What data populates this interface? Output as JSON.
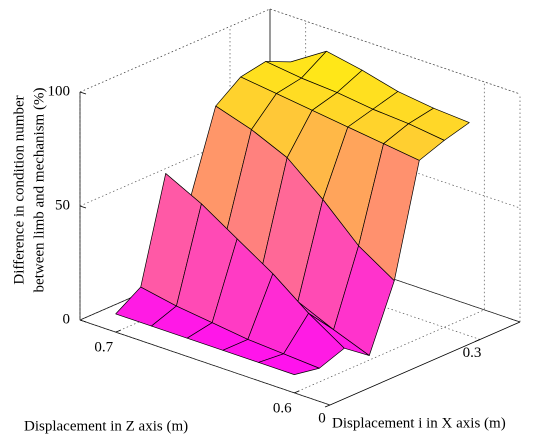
{
  "chart_data": {
    "type": "surface",
    "zlabel": [
      "Difference in condition number",
      "between limb and mechanism (%)"
    ],
    "xlabel": "Displacement i in X axis (m)",
    "ylabel": "Displacement in Z axis (m)",
    "x": [
      0,
      0.05,
      0.1,
      0.15,
      0.2,
      0.25,
      0.3,
      0.35
    ],
    "y": [
      0.6,
      0.62,
      0.64,
      0.66,
      0.68,
      0.7
    ],
    "values": [
      [
        8,
        6,
        10,
        2,
        30,
        78,
        82,
        85
      ],
      [
        8,
        7,
        20,
        8,
        40,
        80,
        84,
        86
      ],
      [
        8,
        8,
        32,
        15,
        55,
        82,
        85,
        88
      ],
      [
        8,
        10,
        42,
        25,
        68,
        84,
        87,
        92
      ],
      [
        8,
        12,
        52,
        35,
        75,
        86,
        88,
        95
      ],
      [
        8,
        15,
        60,
        45,
        80,
        88,
        90,
        85
      ]
    ],
    "xlim": [
      0,
      0.38
    ],
    "xticks": [
      0,
      0.3
    ],
    "ylim": [
      0.58,
      0.72
    ],
    "yticks": [
      0.6,
      0.7
    ],
    "zlim": [
      0,
      100
    ],
    "zticks": [
      0,
      50,
      100
    ],
    "colormap": "spring",
    "grid": true
  }
}
